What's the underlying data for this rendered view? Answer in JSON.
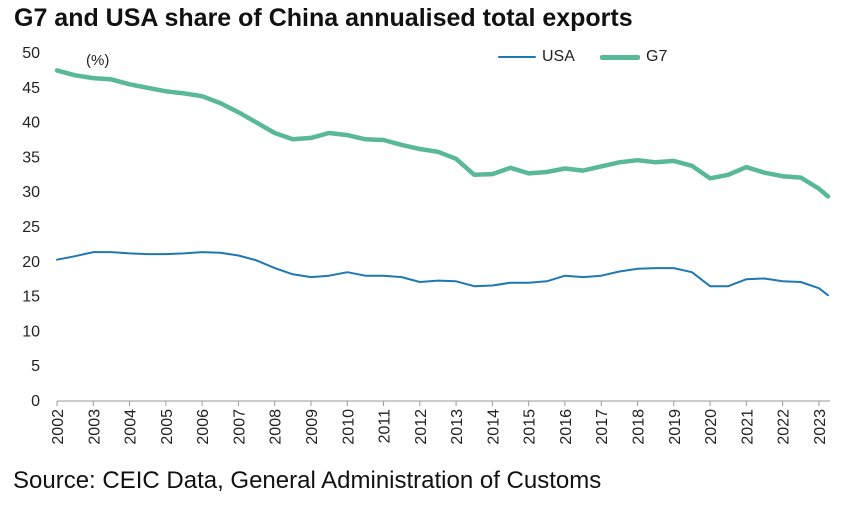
{
  "title": "G7 and USA share of China annualised total exports",
  "unit_label": "(%)",
  "source": "Source: CEIC Data, General Administration of Customs",
  "chart_data": {
    "type": "line",
    "title": "G7 and USA share of China annualised total exports",
    "ylabel": "(%)",
    "xlabel": "",
    "ylim": [
      0,
      50
    ],
    "yticks": [
      0,
      5,
      10,
      15,
      20,
      25,
      30,
      35,
      40,
      45,
      50
    ],
    "xticks": [
      "2002",
      "2003",
      "2004",
      "2005",
      "2006",
      "2007",
      "2008",
      "2009",
      "2010",
      "2011",
      "2012",
      "2013",
      "2014",
      "2015",
      "2016",
      "2017",
      "2018",
      "2019",
      "2020",
      "2021",
      "2022",
      "2023"
    ],
    "grid": false,
    "legend": "top-right",
    "series": [
      {
        "name": "USA",
        "color": "#1f77b4",
        "x": [
          2002.0,
          2002.5,
          2003.0,
          2003.5,
          2004.0,
          2004.5,
          2005.0,
          2005.5,
          2006.0,
          2006.5,
          2007.0,
          2007.5,
          2008.0,
          2008.5,
          2009.0,
          2009.5,
          2010.0,
          2010.5,
          2011.0,
          2011.5,
          2012.0,
          2012.5,
          2013.0,
          2013.5,
          2014.0,
          2014.5,
          2015.0,
          2015.5,
          2016.0,
          2016.5,
          2017.0,
          2017.5,
          2018.0,
          2018.5,
          2019.0,
          2019.5,
          2020.0,
          2020.5,
          2021.0,
          2021.5,
          2022.0,
          2022.5,
          2023.0,
          2023.25
        ],
        "values": [
          20.3,
          20.8,
          21.4,
          21.4,
          21.2,
          21.1,
          21.1,
          21.2,
          21.4,
          21.3,
          20.9,
          20.2,
          19.1,
          18.2,
          17.8,
          18.0,
          18.5,
          18.0,
          18.0,
          17.8,
          17.1,
          17.3,
          17.2,
          16.5,
          16.6,
          17.0,
          17.0,
          17.2,
          18.0,
          17.8,
          18.0,
          18.6,
          19.0,
          19.1,
          19.1,
          18.5,
          16.5,
          16.5,
          17.5,
          17.6,
          17.2,
          17.1,
          16.2,
          15.2
        ]
      },
      {
        "name": "G7",
        "color": "#5ab89a",
        "x": [
          2002.0,
          2002.5,
          2003.0,
          2003.5,
          2004.0,
          2004.5,
          2005.0,
          2005.5,
          2006.0,
          2006.5,
          2007.0,
          2007.5,
          2008.0,
          2008.5,
          2009.0,
          2009.5,
          2010.0,
          2010.5,
          2011.0,
          2011.5,
          2012.0,
          2012.5,
          2013.0,
          2013.5,
          2014.0,
          2014.5,
          2015.0,
          2015.5,
          2016.0,
          2016.5,
          2017.0,
          2017.5,
          2018.0,
          2018.5,
          2019.0,
          2019.5,
          2020.0,
          2020.5,
          2021.0,
          2021.5,
          2022.0,
          2022.5,
          2023.0,
          2023.25
        ],
        "values": [
          47.5,
          46.8,
          46.4,
          46.2,
          45.5,
          45.0,
          44.5,
          44.2,
          43.8,
          42.8,
          41.5,
          40.0,
          38.5,
          37.6,
          37.8,
          38.5,
          38.2,
          37.6,
          37.5,
          36.8,
          36.2,
          35.8,
          34.8,
          32.5,
          32.6,
          33.5,
          32.7,
          32.9,
          33.4,
          33.1,
          33.7,
          34.3,
          34.6,
          34.3,
          34.5,
          33.8,
          32.0,
          32.5,
          33.6,
          32.8,
          32.3,
          32.1,
          30.5,
          29.4
        ]
      }
    ]
  }
}
